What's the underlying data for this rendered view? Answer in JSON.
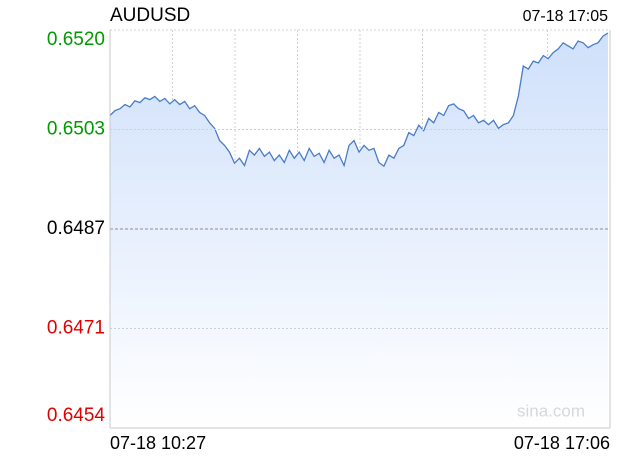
{
  "chart_data": {
    "type": "area",
    "title": "AUDUSD",
    "latest_time": "07-18 17:05",
    "xlabels": [
      "07-18 10:27",
      "07-18 17:06"
    ],
    "watermark": "sina.com",
    "series": [
      {
        "name": "AUDUSD",
        "color": "#4a7cc9",
        "fill": "#cfe0fb",
        "values": [
          0.65056,
          0.65064,
          0.65067,
          0.65074,
          0.6507,
          0.6508,
          0.65077,
          0.65085,
          0.65082,
          0.65087,
          0.65079,
          0.65084,
          0.65075,
          0.65082,
          0.65074,
          0.65079,
          0.65067,
          0.65072,
          0.65061,
          0.65056,
          0.65044,
          0.65035,
          0.65015,
          0.65007,
          0.64996,
          0.64978,
          0.64986,
          0.64974,
          0.64999,
          0.64991,
          0.65002,
          0.64989,
          0.64996,
          0.64982,
          0.64991,
          0.64979,
          0.64999,
          0.64986,
          0.64996,
          0.64982,
          0.65002,
          0.64989,
          0.64994,
          0.64979,
          0.64999,
          0.64986,
          0.64991,
          0.64974,
          0.65007,
          0.65015,
          0.64996,
          0.65007,
          0.64999,
          0.65002,
          0.64979,
          0.64973,
          0.64991,
          0.64986,
          0.65002,
          0.65007,
          0.65028,
          0.65023,
          0.6504,
          0.65031,
          0.65051,
          0.65044,
          0.65061,
          0.65056,
          0.65072,
          0.65075,
          0.65067,
          0.65064,
          0.65051,
          0.65056,
          0.65044,
          0.65048,
          0.65041,
          0.65048,
          0.65035,
          0.65041,
          0.65044,
          0.65056,
          0.65088,
          0.65137,
          0.65132,
          0.65145,
          0.65142,
          0.65154,
          0.65149,
          0.65159,
          0.65165,
          0.65175,
          0.6517,
          0.65165,
          0.65178,
          0.65175,
          0.65167,
          0.65172,
          0.65175,
          0.65186,
          0.65191
        ]
      }
    ],
    "ylim": [
      0.64544,
      0.65196
    ],
    "yticks": [
      {
        "value": 0.64544,
        "label": "0.6454"
      },
      {
        "value": 0.64707,
        "label": "0.6471"
      },
      {
        "value": 0.6487,
        "label": "0.6487"
      },
      {
        "value": 0.65033,
        "label": "0.6503"
      },
      {
        "value": 0.65196,
        "label": "0.6520"
      }
    ],
    "ytick_colors": [
      "#e00000",
      "#e00000",
      "#000000",
      "#009900",
      "#009900"
    ],
    "grid": true
  }
}
